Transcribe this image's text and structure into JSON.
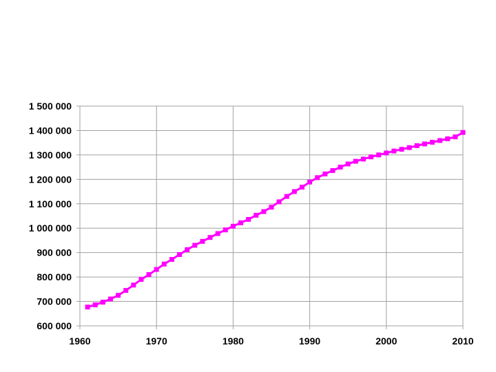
{
  "chart_data": {
    "type": "line",
    "title": "",
    "xlabel": "",
    "ylabel": "",
    "xlim": [
      1960,
      2010
    ],
    "ylim": [
      600000,
      1500000
    ],
    "grid": true,
    "legend": "none",
    "x_ticks": [
      {
        "value": 1960,
        "label": "1960"
      },
      {
        "value": 1970,
        "label": "1970"
      },
      {
        "value": 1980,
        "label": "1980"
      },
      {
        "value": 1990,
        "label": "1990"
      },
      {
        "value": 2000,
        "label": "2000"
      },
      {
        "value": 2010,
        "label": "2010"
      }
    ],
    "y_ticks": [
      {
        "value": 600000,
        "label": "600 000"
      },
      {
        "value": 700000,
        "label": "700 000"
      },
      {
        "value": 800000,
        "label": "800 000"
      },
      {
        "value": 900000,
        "label": "900 000"
      },
      {
        "value": 1000000,
        "label": "1 000 000"
      },
      {
        "value": 1100000,
        "label": "1 100 000"
      },
      {
        "value": 1200000,
        "label": "1 200 000"
      },
      {
        "value": 1300000,
        "label": "1 300 000"
      },
      {
        "value": 1400000,
        "label": "1 400 000"
      },
      {
        "value": 1500000,
        "label": "1 500 000"
      }
    ],
    "series": [
      {
        "color": "#ff00ff",
        "marker": "square",
        "x": [
          1961,
          1962,
          1963,
          1964,
          1965,
          1966,
          1967,
          1968,
          1969,
          1970,
          1971,
          1972,
          1973,
          1974,
          1975,
          1976,
          1977,
          1978,
          1979,
          1980,
          1981,
          1982,
          1983,
          1984,
          1985,
          1986,
          1987,
          1988,
          1989,
          1990,
          1991,
          1992,
          1993,
          1994,
          1995,
          1996,
          1997,
          1998,
          1999,
          2000,
          2001,
          2002,
          2003,
          2004,
          2005,
          2006,
          2007,
          2008,
          2009,
          2010
        ],
        "y": [
          677000,
          686000,
          697000,
          710000,
          725000,
          745000,
          767000,
          790000,
          810000,
          831000,
          853000,
          872000,
          892000,
          912000,
          930000,
          946000,
          962000,
          978000,
          993000,
          1008000,
          1022000,
          1036000,
          1053000,
          1068000,
          1086000,
          1108000,
          1130000,
          1150000,
          1168000,
          1189000,
          1207000,
          1222000,
          1236000,
          1250000,
          1263000,
          1274000,
          1283000,
          1292000,
          1300000,
          1308000,
          1316000,
          1323000,
          1330000,
          1338000,
          1345000,
          1352000,
          1359000,
          1366000,
          1374000,
          1392000
        ]
      }
    ]
  }
}
